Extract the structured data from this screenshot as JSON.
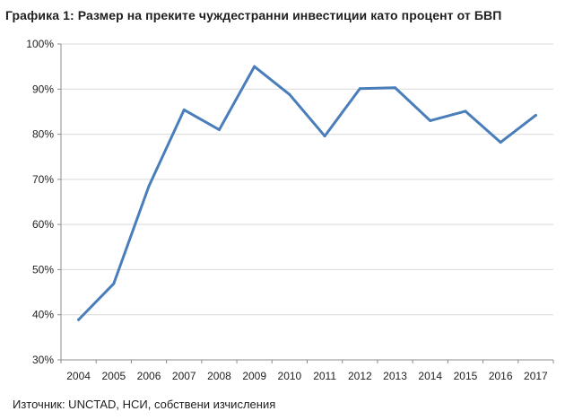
{
  "title": "Графика 1: Размер на преките чуждестранни инвестиции като процент от БВП",
  "source": "Източник: UNCTAD, НСИ, собствени изчисления",
  "chart_data": {
    "type": "line",
    "title": "Графика 1: Размер на преките чуждестранни инвестиции като процент от БВП",
    "xlabel": "",
    "ylabel": "",
    "categories": [
      "2004",
      "2005",
      "2006",
      "2007",
      "2008",
      "2009",
      "2010",
      "2011",
      "2012",
      "2013",
      "2014",
      "2015",
      "2016",
      "2017"
    ],
    "series": [
      {
        "values": [
          38.9,
          46.9,
          68.5,
          85.4,
          81.0,
          95.0,
          88.8,
          79.6,
          90.1,
          90.3,
          83.0,
          85.1,
          78.2,
          84.2
        ],
        "color": "#4a7ebb"
      }
    ],
    "yticks": [
      "30%",
      "40%",
      "50%",
      "60%",
      "70%",
      "80%",
      "90%",
      "100%"
    ],
    "ylim": [
      30,
      100
    ],
    "grid": true,
    "legend": "none"
  }
}
